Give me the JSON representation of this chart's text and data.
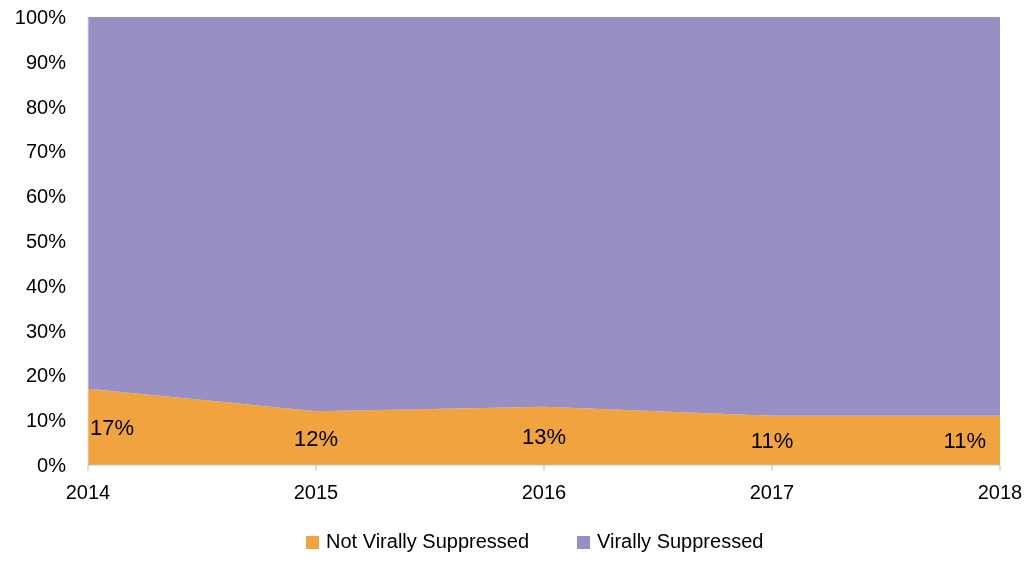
{
  "chart_data": {
    "type": "area",
    "stacked": true,
    "x": [
      2014,
      2015,
      2016,
      2017,
      2018
    ],
    "xlim": [
      2014,
      2018
    ],
    "xticks": [
      2014,
      2015,
      2016,
      2017,
      2018
    ],
    "ylim": [
      0,
      100
    ],
    "yticks": [
      {
        "value": 0,
        "label": "0%"
      },
      {
        "value": 10,
        "label": "10%"
      },
      {
        "value": 20,
        "label": "20%"
      },
      {
        "value": 30,
        "label": "30%"
      },
      {
        "value": 40,
        "label": "40%"
      },
      {
        "value": 50,
        "label": "50%"
      },
      {
        "value": 60,
        "label": "60%"
      },
      {
        "value": 70,
        "label": "70%"
      },
      {
        "value": 80,
        "label": "80%"
      },
      {
        "value": 90,
        "label": "90%"
      },
      {
        "value": 100,
        "label": "100%"
      }
    ],
    "series": [
      {
        "name": "Not Virally Suppressed",
        "color": "#f0a33e",
        "values": [
          17,
          12,
          13,
          11,
          11
        ],
        "value_labels": [
          "17%",
          "12%",
          "13%",
          "11%",
          "11%"
        ]
      },
      {
        "name": "Virally Suppressed",
        "color": "#9890c4",
        "values": [
          83,
          88,
          87,
          89,
          89
        ]
      }
    ],
    "legend": "bottom",
    "grid": false
  }
}
